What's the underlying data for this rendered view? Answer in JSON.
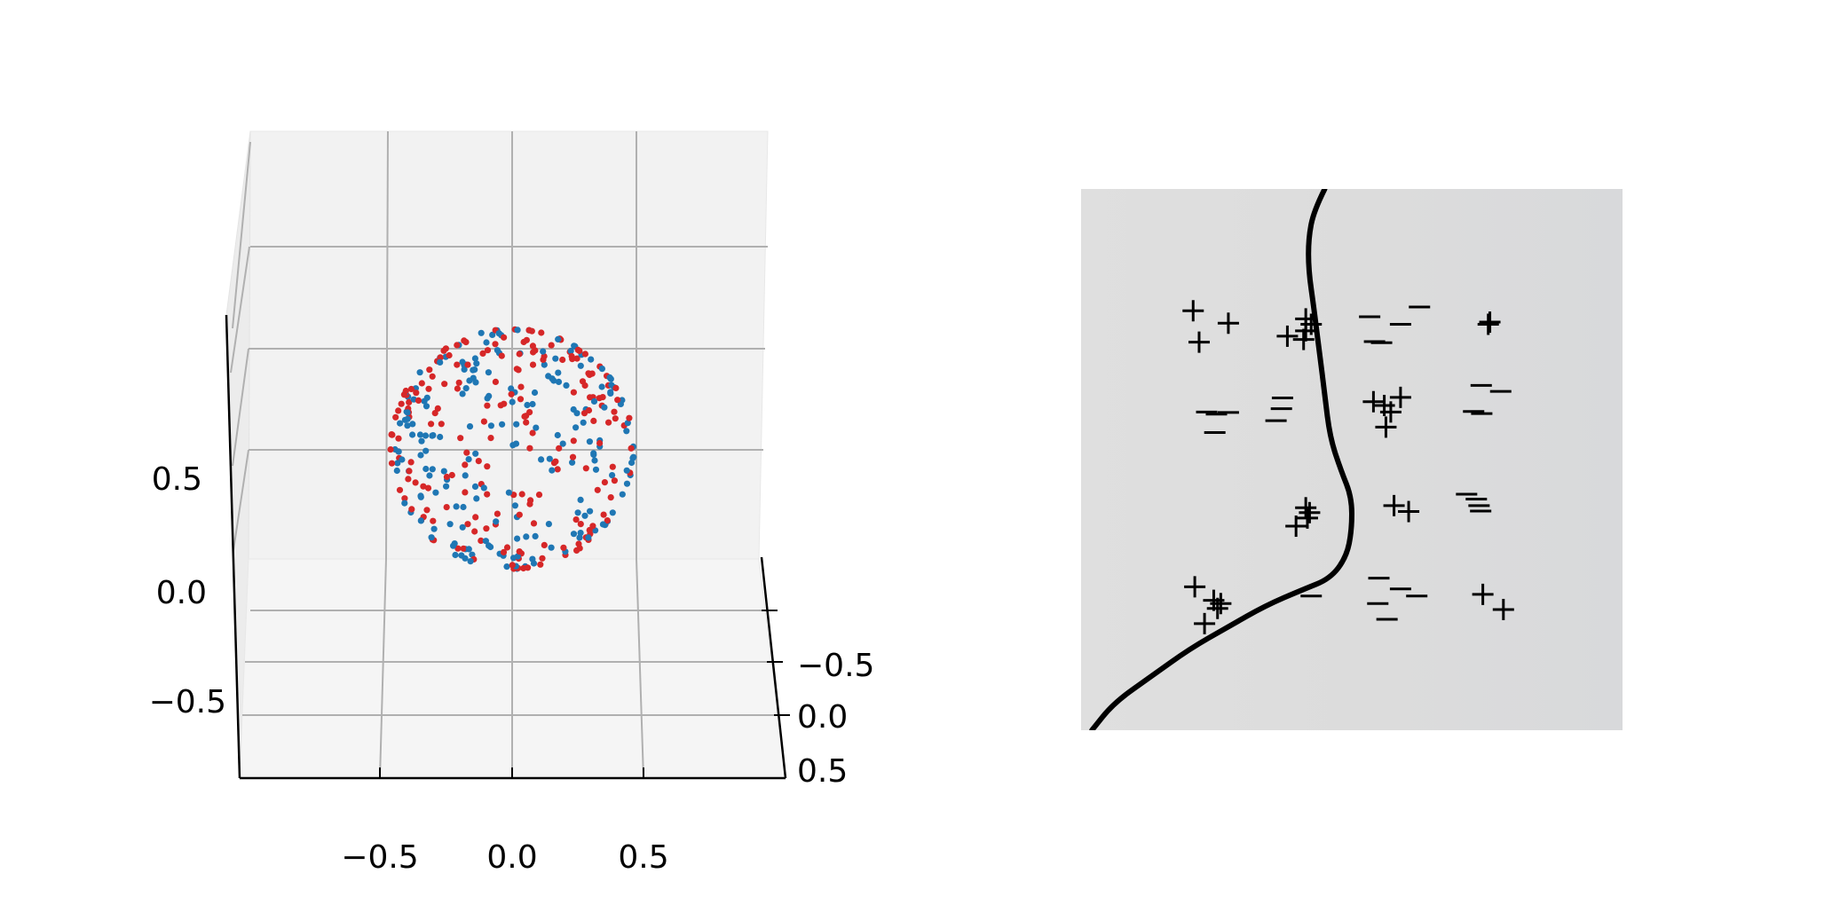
{
  "chart_data": [
    {
      "type": "scatter",
      "projection": "3d",
      "title": "",
      "xlabel": "",
      "ylabel": "",
      "zlabel": "",
      "x_ticks": [
        "−0.5",
        "0.0",
        "0.5"
      ],
      "y_ticks": [
        "−0.5",
        "0.0",
        "0.5"
      ],
      "z_ticks": [
        "0.5",
        "0.0",
        "−0.5"
      ],
      "xlim": [
        -1.05,
        1.05
      ],
      "ylim": [
        -1.05,
        1.05
      ],
      "zlim": [
        -1.05,
        1.05
      ],
      "grid": true,
      "sphere_radius": 0.9,
      "points_per_class": 200,
      "series": [
        {
          "color": "#d62728"
        },
        {
          "color": "#1f77b4"
        }
      ]
    },
    {
      "type": "scatter",
      "title": "",
      "axes_visible": false,
      "background_color": "#dcdcdc",
      "decision_boundary_color": "#000000",
      "decision_boundary": [
        [
          0.45,
          0.0
        ],
        [
          0.43,
          0.04
        ],
        [
          0.42,
          0.09
        ],
        [
          0.42,
          0.15
        ],
        [
          0.43,
          0.22
        ],
        [
          0.44,
          0.3
        ],
        [
          0.45,
          0.38
        ],
        [
          0.46,
          0.46
        ],
        [
          0.48,
          0.52
        ],
        [
          0.5,
          0.57
        ],
        [
          0.5,
          0.63
        ],
        [
          0.49,
          0.68
        ],
        [
          0.46,
          0.72
        ],
        [
          0.41,
          0.74
        ],
        [
          0.34,
          0.77
        ],
        [
          0.27,
          0.81
        ],
        [
          0.2,
          0.85
        ],
        [
          0.13,
          0.9
        ],
        [
          0.06,
          0.95
        ],
        [
          0.02,
          1.0
        ]
      ],
      "markers": [
        {
          "symbol": "+",
          "x": 0.207,
          "y": 0.225
        },
        {
          "symbol": "+",
          "x": 0.272,
          "y": 0.248
        },
        {
          "symbol": "+",
          "x": 0.218,
          "y": 0.283
        },
        {
          "symbol": "+",
          "x": 0.415,
          "y": 0.24
        },
        {
          "symbol": "+",
          "x": 0.425,
          "y": 0.25
        },
        {
          "symbol": "+",
          "x": 0.415,
          "y": 0.262
        },
        {
          "symbol": "+",
          "x": 0.381,
          "y": 0.272
        },
        {
          "symbol": "+",
          "x": 0.411,
          "y": 0.278
        },
        {
          "symbol": "−",
          "x": 0.533,
          "y": 0.236
        },
        {
          "symbol": "−",
          "x": 0.59,
          "y": 0.25
        },
        {
          "symbol": "−",
          "x": 0.625,
          "y": 0.218
        },
        {
          "symbol": "−",
          "x": 0.542,
          "y": 0.282
        },
        {
          "symbol": "−",
          "x": 0.555,
          "y": 0.284
        },
        {
          "symbol": "+",
          "x": 0.755,
          "y": 0.246
        },
        {
          "symbol": "+",
          "x": 0.752,
          "y": 0.25
        },
        {
          "symbol": "−",
          "x": 0.232,
          "y": 0.412
        },
        {
          "symbol": "−",
          "x": 0.25,
          "y": 0.416
        },
        {
          "symbol": "−",
          "x": 0.272,
          "y": 0.413
        },
        {
          "symbol": "−",
          "x": 0.247,
          "y": 0.45
        },
        {
          "symbol": "−",
          "x": 0.372,
          "y": 0.386
        },
        {
          "symbol": "−",
          "x": 0.37,
          "y": 0.406
        },
        {
          "symbol": "−",
          "x": 0.36,
          "y": 0.428
        },
        {
          "symbol": "+",
          "x": 0.54,
          "y": 0.393
        },
        {
          "symbol": "+",
          "x": 0.56,
          "y": 0.4
        },
        {
          "symbol": "+",
          "x": 0.59,
          "y": 0.385
        },
        {
          "symbol": "+",
          "x": 0.572,
          "y": 0.412
        },
        {
          "symbol": "+",
          "x": 0.563,
          "y": 0.44
        },
        {
          "symbol": "−",
          "x": 0.739,
          "y": 0.363
        },
        {
          "symbol": "−",
          "x": 0.775,
          "y": 0.374
        },
        {
          "symbol": "−",
          "x": 0.725,
          "y": 0.411
        },
        {
          "symbol": "−",
          "x": 0.74,
          "y": 0.415
        },
        {
          "symbol": "+",
          "x": 0.415,
          "y": 0.589
        },
        {
          "symbol": "+",
          "x": 0.422,
          "y": 0.598
        },
        {
          "symbol": "+",
          "x": 0.418,
          "y": 0.608
        },
        {
          "symbol": "+",
          "x": 0.397,
          "y": 0.623
        },
        {
          "symbol": "+",
          "x": 0.578,
          "y": 0.585
        },
        {
          "symbol": "+",
          "x": 0.605,
          "y": 0.596
        },
        {
          "symbol": "−",
          "x": 0.712,
          "y": 0.564
        },
        {
          "symbol": "−",
          "x": 0.73,
          "y": 0.573
        },
        {
          "symbol": "−",
          "x": 0.735,
          "y": 0.585
        },
        {
          "symbol": "−",
          "x": 0.738,
          "y": 0.595
        },
        {
          "symbol": "+",
          "x": 0.21,
          "y": 0.735
        },
        {
          "symbol": "+",
          "x": 0.245,
          "y": 0.76
        },
        {
          "symbol": "+",
          "x": 0.258,
          "y": 0.766
        },
        {
          "symbol": "+",
          "x": 0.252,
          "y": 0.775
        },
        {
          "symbol": "+",
          "x": 0.228,
          "y": 0.803
        },
        {
          "symbol": "−",
          "x": 0.425,
          "y": 0.752
        },
        {
          "symbol": "−",
          "x": 0.55,
          "y": 0.719
        },
        {
          "symbol": "−",
          "x": 0.59,
          "y": 0.739
        },
        {
          "symbol": "−",
          "x": 0.62,
          "y": 0.752
        },
        {
          "symbol": "−",
          "x": 0.548,
          "y": 0.766
        },
        {
          "symbol": "−",
          "x": 0.565,
          "y": 0.795
        },
        {
          "symbol": "+",
          "x": 0.742,
          "y": 0.749
        },
        {
          "symbol": "+",
          "x": 0.78,
          "y": 0.777
        }
      ]
    }
  ]
}
